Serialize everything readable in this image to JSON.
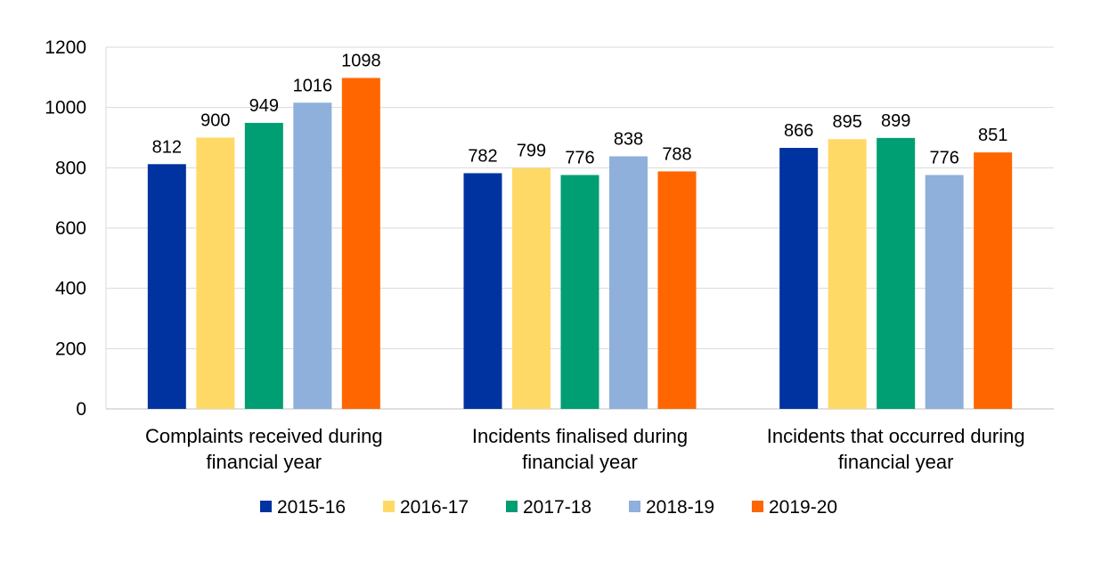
{
  "chart_data": {
    "type": "bar",
    "title": "",
    "xlabel": "",
    "ylabel": "",
    "ylim": [
      0,
      1200
    ],
    "yticks": [
      0,
      200,
      400,
      600,
      800,
      1000,
      1200
    ],
    "grid": true,
    "legend_position": "bottom",
    "categories": [
      [
        "Complaints received during",
        "financial year"
      ],
      [
        "Incidents finalised during",
        "financial year"
      ],
      [
        "Incidents that occurred during",
        "financial year"
      ]
    ],
    "series": [
      {
        "name": "2015-16",
        "color": "#0033A0",
        "values": [
          812,
          782,
          866
        ]
      },
      {
        "name": "2016-17",
        "color": "#FFD966",
        "values": [
          900,
          799,
          895
        ]
      },
      {
        "name": "2017-18",
        "color": "#009E73",
        "values": [
          949,
          776,
          899
        ]
      },
      {
        "name": "2018-19",
        "color": "#8EB0DA",
        "values": [
          1016,
          838,
          776
        ]
      },
      {
        "name": "2019-20",
        "color": "#FF6600",
        "values": [
          1098,
          788,
          851
        ]
      }
    ]
  }
}
